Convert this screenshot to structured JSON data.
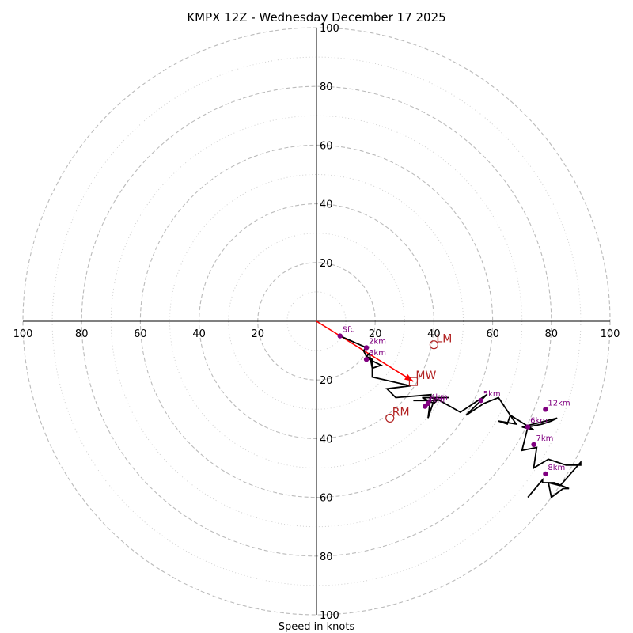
{
  "chart_data": {
    "type": "line",
    "title": "KMPX 12Z - Wednesday December 17 2025",
    "xlabel": "Speed in knots",
    "xlim": [
      -100,
      100
    ],
    "ylim": [
      -100,
      100
    ],
    "rings_major": [
      20,
      40,
      60,
      80,
      100
    ],
    "rings_minor": [
      10,
      30,
      50,
      70,
      90
    ],
    "tick_labels": [
      "100",
      "80",
      "60",
      "40",
      "20",
      "20",
      "40",
      "60",
      "80",
      "100"
    ],
    "tick_values": [
      -100,
      -80,
      -60,
      -40,
      -20,
      20,
      40,
      60,
      80,
      100
    ],
    "hodograph": {
      "x": [
        8,
        17,
        16,
        17,
        18,
        22,
        19,
        18,
        17,
        19,
        19,
        32,
        24,
        24,
        27,
        39,
        38,
        40,
        33,
        41,
        40,
        36,
        45,
        39,
        42,
        49,
        52,
        55,
        58,
        57,
        51,
        57,
        62,
        68,
        62,
        65,
        66,
        74,
        70,
        82,
        80,
        77,
        72,
        70,
        75,
        74,
        79,
        85,
        90,
        90,
        83,
        79,
        80,
        84,
        86,
        81,
        77,
        77,
        72
      ],
      "y": [
        -5,
        -9,
        -10,
        -12,
        -13,
        -15,
        -16,
        -11,
        -12,
        -13,
        -19,
        -22,
        -23,
        -23,
        -26,
        -25,
        -33,
        -27,
        -27,
        -27,
        -28,
        -26,
        -26,
        -26,
        -27,
        -31,
        -29,
        -27,
        -25,
        -26,
        -32,
        -28,
        -26,
        -35,
        -34,
        -35,
        -32,
        -37,
        -36,
        -33,
        -34,
        -35,
        -36,
        -44,
        -43,
        -50,
        -47,
        -49,
        -49,
        -48,
        -56,
        -55,
        -60,
        -57,
        -57,
        -55,
        -55,
        -54,
        -60
      ]
    },
    "heights": [
      {
        "label": "Sfc",
        "x": 8,
        "y": -5
      },
      {
        "label": "2km",
        "x": 17,
        "y": -9
      },
      {
        "label": "3km",
        "x": 17,
        "y": -13
      },
      {
        "label": "4km",
        "x": 38,
        "y": -28
      },
      {
        "label": "4km",
        "x": 37,
        "y": -29
      },
      {
        "label": "5km",
        "x": 56,
        "y": -27
      },
      {
        "label": "6km",
        "x": 72,
        "y": -36
      },
      {
        "label": "7km",
        "x": 74,
        "y": -42
      },
      {
        "label": "8km",
        "x": 78,
        "y": -52
      },
      {
        "label": "12km",
        "x": 78,
        "y": -30
      }
    ],
    "motion": {
      "mw": {
        "label": "MW",
        "x": 33,
        "y": -20.5
      },
      "lm": {
        "label": "LM",
        "x": 40,
        "y": -8
      },
      "rm": {
        "label": "RM",
        "x": 25,
        "y": -33
      }
    },
    "shear_vector": {
      "x0": 0,
      "y0": 0,
      "x1": 33,
      "y1": -20.5
    },
    "colors": {
      "hodograph": "#000000",
      "height_markers": "#800080",
      "motion": "#b22222",
      "shear_vector": "#ff0000",
      "grid": "#bbbbbb"
    }
  }
}
